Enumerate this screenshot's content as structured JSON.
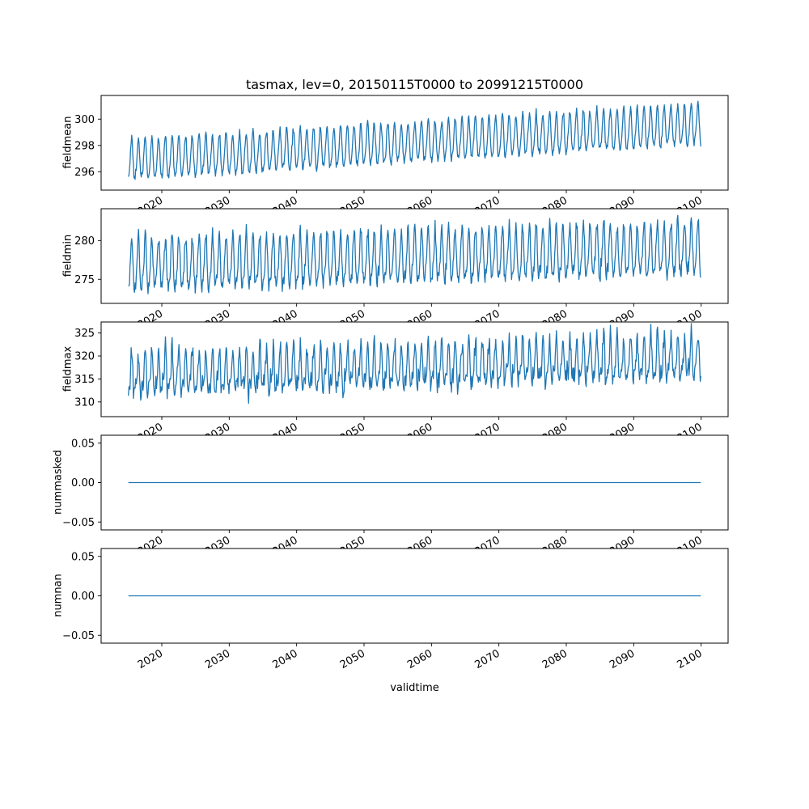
{
  "chart_data": {
    "type": "line",
    "title": "tasmax, lev=0, 20150115T0000 to 20991215T0000",
    "xlabel": "validtime",
    "line_color": "#1f77b4",
    "grid": false,
    "legend": "none",
    "frequency": "monthly",
    "x_axis": {
      "xlim": [
        2011,
        2104
      ],
      "ticks": [
        2020,
        2030,
        2040,
        2050,
        2060,
        2070,
        2080,
        2090,
        2100
      ],
      "tick_labels": [
        "2020",
        "2030",
        "2040",
        "2050",
        "2060",
        "2070",
        "2080",
        "2090",
        "2100"
      ],
      "tick_rotation_deg": 30
    },
    "subplots": [
      {
        "ylabel": "fieldmean",
        "ylim": [
          294.6,
          301.8
        ],
        "yticks": [
          296,
          298,
          300
        ],
        "ytick_labels": [
          "296",
          "298",
          "300"
        ],
        "series": {
          "name": "fieldmean",
          "type": "seasonal_trend",
          "x_start": 2015.04,
          "x_end": 2099.96,
          "n_points": 1020,
          "trend_start": 296.8,
          "trend_end": 299.5,
          "seasonal_amplitude": 1.5,
          "harmonic2_amplitude": 0.25,
          "noise_sd": 0.15,
          "approx_min": 295.0,
          "approx_max": 301.6
        }
      },
      {
        "ylabel": "fieldmin",
        "ylim": [
          271.9,
          284.1
        ],
        "yticks": [
          275,
          280
        ],
        "ytick_labels": [
          "275",
          "280"
        ],
        "series": {
          "name": "fieldmin",
          "type": "seasonal_trend",
          "x_start": 2015.04,
          "x_end": 2099.96,
          "n_points": 1020,
          "trend_start": 276.6,
          "trend_end": 278.7,
          "seasonal_amplitude": 3.2,
          "harmonic2_amplitude": 0.8,
          "noise_sd": 0.5,
          "approx_min": 272.2,
          "approx_max": 283.6
        }
      },
      {
        "ylabel": "fieldmax",
        "ylim": [
          306.8,
          327.4
        ],
        "yticks": [
          310,
          315,
          320,
          325
        ],
        "ytick_labels": [
          "310",
          "315",
          "320",
          "325"
        ],
        "series": {
          "name": "fieldmax",
          "type": "seasonal_trend",
          "x_start": 2015.04,
          "x_end": 2099.96,
          "n_points": 1020,
          "trend_start": 315.4,
          "trend_end": 319.4,
          "seasonal_amplitude": 4.0,
          "harmonic2_amplitude": 1.8,
          "noise_sd": 1.1,
          "approx_min": 308.0,
          "approx_max": 326.2
        }
      },
      {
        "ylabel": "nummasked",
        "ylim": [
          -0.06,
          0.06
        ],
        "yticks": [
          0.05,
          0.0,
          -0.05
        ],
        "ytick_labels": [
          "0.05",
          "0.00",
          "−0.05"
        ],
        "series": {
          "name": "nummasked",
          "type": "constant",
          "value": 0,
          "x_start": 2015.04,
          "x_end": 2099.96
        }
      },
      {
        "ylabel": "numnan",
        "ylim": [
          -0.06,
          0.06
        ],
        "yticks": [
          0.05,
          0.0,
          -0.05
        ],
        "ytick_labels": [
          "0.05",
          "0.00",
          "−0.05"
        ],
        "series": {
          "name": "numnan",
          "type": "constant",
          "value": 0,
          "x_start": 2015.04,
          "x_end": 2099.96
        }
      }
    ]
  }
}
